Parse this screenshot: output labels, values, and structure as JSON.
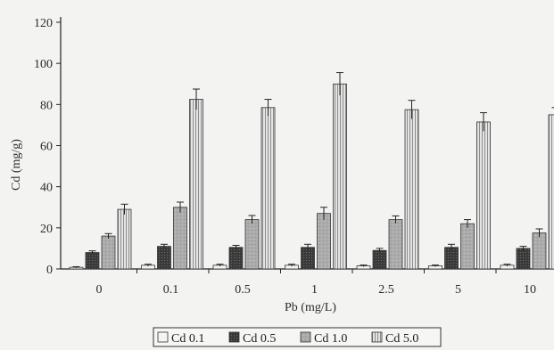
{
  "chart_data": {
    "type": "bar",
    "title": "",
    "xlabel": "Pb (mg/L)",
    "ylabel": "Cd (mg/g)",
    "ylim": [
      0,
      120
    ],
    "yticks": [
      0,
      20,
      40,
      60,
      80,
      100,
      120
    ],
    "categories": [
      "0",
      "0.1",
      "0.5",
      "1",
      "2.5",
      "5",
      "10"
    ],
    "grid": false,
    "error_bars": true,
    "legend_position": "bottom",
    "series": [
      {
        "name": "Cd 0.1",
        "color": "#f4f4f4",
        "pattern": "white",
        "values": [
          0.8,
          1.8,
          1.8,
          1.8,
          1.5,
          1.5,
          1.8
        ],
        "errors": [
          0.3,
          0.5,
          0.5,
          0.5,
          0.4,
          0.4,
          0.5
        ]
      },
      {
        "name": "Cd 0.5",
        "color": "#4a4a4a",
        "pattern": "dark",
        "values": [
          8,
          11,
          10.5,
          10.5,
          9,
          10.5,
          10
        ],
        "errors": [
          0.8,
          1.0,
          1.0,
          1.5,
          1.0,
          1.5,
          1.0
        ]
      },
      {
        "name": "Cd 1.0",
        "color": "#a9a9a9",
        "pattern": "gray",
        "values": [
          16,
          30,
          24,
          27,
          24,
          22,
          17.5
        ],
        "errors": [
          1.2,
          2.5,
          2.0,
          3.0,
          1.8,
          2.0,
          2.0
        ]
      },
      {
        "name": "Cd 5.0",
        "color": "#dcdcdc",
        "pattern": "vstripe",
        "values": [
          29,
          82.5,
          78.5,
          90,
          77.5,
          71.5,
          75
        ],
        "errors": [
          2.5,
          5.0,
          4.0,
          5.5,
          4.5,
          4.5,
          3.5
        ]
      }
    ]
  }
}
